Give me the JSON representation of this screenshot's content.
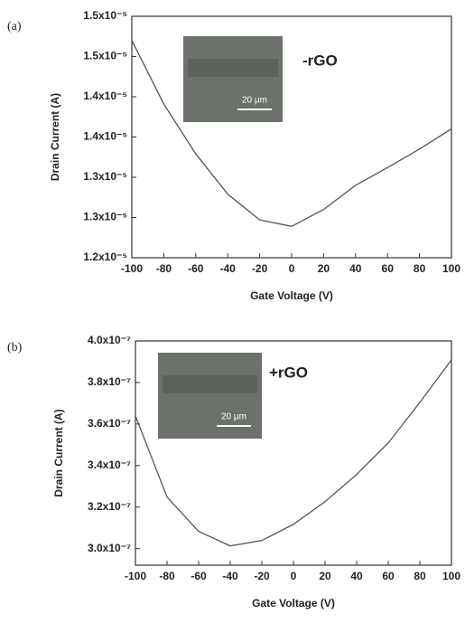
{
  "chart_data": [
    {
      "type": "line",
      "panel_label": "(a)",
      "annotation": "-rGO",
      "inset_scale": "20 μm",
      "xlabel": "Gate Voltage (V)",
      "ylabel": "Drain Current (A)",
      "x": [
        -100,
        -80,
        -60,
        -40,
        -20,
        0,
        20,
        40,
        60,
        80,
        100
      ],
      "series": [
        {
          "color": "#555555",
          "values": [
            1.47e-05,
            1.391e-05,
            1.329e-05,
            1.279e-05,
            1.247e-05,
            1.239e-05,
            1.26e-05,
            1.29e-05,
            1.312e-05,
            1.335e-05,
            1.36e-05
          ]
        }
      ],
      "xlim": [
        -100,
        100
      ],
      "xticks": [
        -100,
        -80,
        -60,
        -40,
        -20,
        0,
        20,
        40,
        60,
        80,
        100
      ],
      "ylim": [
        1.2e-05,
        1.5e-05
      ],
      "yticks": [
        {
          "value": 1.2e-05,
          "label": "1.2x10⁻⁵"
        },
        {
          "value": 1.25e-05,
          "label": "1.3x10⁻⁵"
        },
        {
          "value": 1.3e-05,
          "label": "1.3x10⁻⁵"
        },
        {
          "value": 1.35e-05,
          "label": "1.4x10⁻⁵"
        },
        {
          "value": 1.4e-05,
          "label": "1.4x10⁻⁵"
        },
        {
          "value": 1.45e-05,
          "label": "1.5x10⁻⁵"
        },
        {
          "value": 1.5e-05,
          "label": "1.5x10⁻⁵"
        }
      ],
      "grid": false
    },
    {
      "type": "line",
      "panel_label": "(b)",
      "annotation": "+rGO",
      "inset_scale": "20 μm",
      "xlabel": "Gate Voltage (V)",
      "ylabel": "Drain Current (A)",
      "x": [
        -100,
        -80,
        -60,
        -40,
        -20,
        0,
        20,
        40,
        60,
        80,
        100
      ],
      "series": [
        {
          "color": "#555555",
          "values": [
            3.639e-07,
            3.248e-07,
            3.083e-07,
            3.013e-07,
            3.039e-07,
            3.117e-07,
            3.226e-07,
            3.357e-07,
            3.509e-07,
            3.704e-07,
            3.909e-07
          ]
        }
      ],
      "xlim": [
        -100,
        100
      ],
      "xticks": [
        -100,
        -80,
        -60,
        -40,
        -20,
        0,
        20,
        40,
        60,
        80,
        100
      ],
      "ylim": [
        2.92e-07,
        4e-07
      ],
      "yticks": [
        {
          "value": 3e-07,
          "label": "3.0x10⁻⁷"
        },
        {
          "value": 3.2e-07,
          "label": "3.2x10⁻⁷"
        },
        {
          "value": 3.4e-07,
          "label": "3.4x10⁻⁷"
        },
        {
          "value": 3.6e-07,
          "label": "3.6x10⁻⁷"
        },
        {
          "value": 3.8e-07,
          "label": "3.8x10⁻⁷"
        },
        {
          "value": 4e-07,
          "label": "4.0x10⁻⁷"
        }
      ],
      "grid": false
    }
  ]
}
